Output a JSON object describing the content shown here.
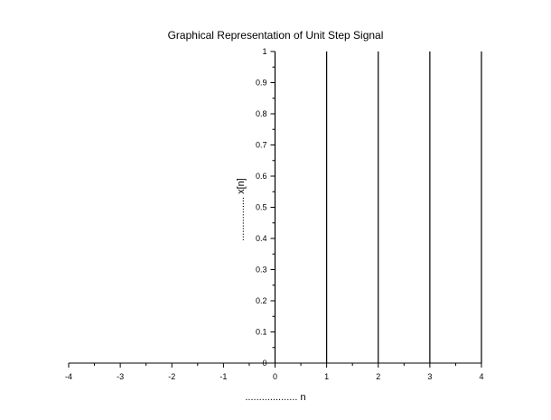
{
  "chart_data": {
    "type": "bar",
    "title": "Graphical Representation of Unit Step Signal",
    "xlabel": "................... n",
    "ylabel": "................ x[n]",
    "x": [
      -4,
      -3,
      -2,
      -1,
      0,
      1,
      2,
      3,
      4
    ],
    "values": [
      0,
      0,
      0,
      0,
      1,
      1,
      1,
      1,
      1
    ],
    "xlim": [
      -4,
      4
    ],
    "ylim": [
      0,
      1
    ],
    "x_ticks": [
      "-4",
      "-3",
      "-2",
      "-1",
      "0",
      "1",
      "2",
      "3",
      "4"
    ],
    "y_ticks": [
      "0",
      "0.1",
      "0.2",
      "0.3",
      "0.4",
      "0.5",
      "0.6",
      "0.7",
      "0.8",
      "0.9",
      "1"
    ],
    "x_axis_at_y": 0,
    "y_axis_at_x": 0,
    "grid": false,
    "line_color": "#000000"
  }
}
